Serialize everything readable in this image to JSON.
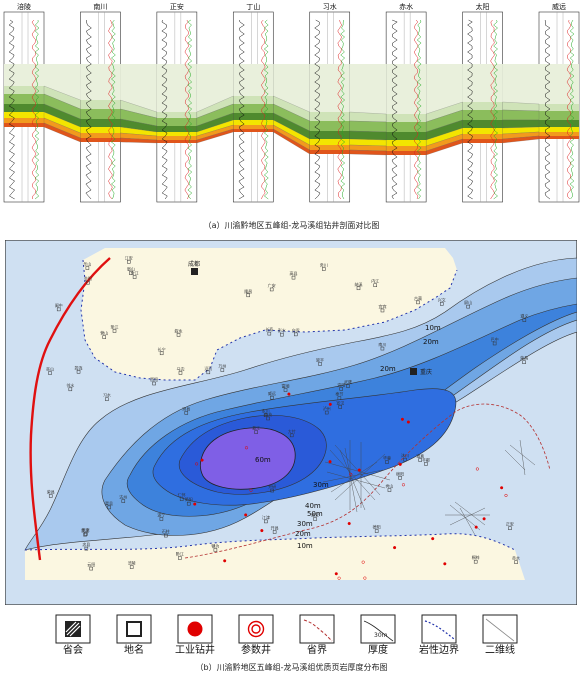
{
  "panel_a": {
    "caption": "（a）川渝黔地区五峰组-龙马溪组钻井剖面对比图",
    "wells": [
      "涪陵",
      "南川",
      "正安",
      "丁山",
      "习水",
      "赤水",
      "太阳",
      "威远"
    ]
  },
  "panel_b": {
    "caption": "（b）川渝黔地区五峰组-龙马溪组优质页岩厚度分布图",
    "contour_labels": [
      "10m",
      "20m",
      "20m",
      "30m",
      "40m",
      "50m",
      "60m",
      "30m",
      "20m",
      "10m"
    ],
    "key_cities": [
      "成都",
      "重庆"
    ],
    "places": [
      "大竹",
      "营山",
      "南充",
      "乐至",
      "资阳",
      "简阳",
      "内江",
      "自贡",
      "宜宾",
      "泸州",
      "合江",
      "赤水",
      "习水",
      "遵义",
      "綦江",
      "南川",
      "涪陵",
      "长寿",
      "梁平",
      "达州",
      "万州",
      "忠县",
      "石柱",
      "彭水",
      "武隆",
      "丰都",
      "垫江",
      "广安",
      "邻水",
      "华蓥",
      "荣昌",
      "永川",
      "江津",
      "威远",
      "叙永",
      "古蔺",
      "仁怀",
      "桐梓",
      "正安",
      "道真",
      "务川",
      "沿河",
      "酉阳",
      "秀山",
      "黔江",
      "巫山",
      "奉节",
      "云阳",
      "开县",
      "宣汉",
      "渠县",
      "巴中",
      "阆中",
      "绵阳",
      "德阳",
      "遂宁",
      "眉山",
      "乐山",
      "雅安",
      "屏山",
      "高县",
      "珙县",
      "筠连",
      "长宁",
      "兴文",
      "江安",
      "纳溪",
      "隆昌",
      "富顺",
      "荣县",
      "井研",
      "犍为",
      "沐川",
      "马边",
      "雷波",
      "金阳"
    ]
  },
  "legend": [
    {
      "icon": "provincial-capital-icon",
      "label": "省会"
    },
    {
      "icon": "place-name-icon",
      "label": "地名"
    },
    {
      "icon": "industrial-well-icon",
      "label": "工业钻井"
    },
    {
      "icon": "parameter-well-icon",
      "label": "参数井"
    },
    {
      "icon": "provincial-boundary-icon",
      "label": "省界"
    },
    {
      "icon": "thickness-contour-icon",
      "label": "厚度",
      "sample": "30m"
    },
    {
      "icon": "lithology-boundary-icon",
      "label": "岩性边界"
    },
    {
      "icon": "2d-seismic-line-icon",
      "label": "二维线"
    }
  ],
  "colors": {
    "band_purple": "#d6cde6",
    "band_lightgreen": "#cfe3b8",
    "band_green": "#8bbd5c",
    "band_darkgreen": "#4f8a2e",
    "band_yellow": "#f3e500",
    "band_orange": "#f29a1d",
    "band_red": "#e0551b",
    "map_bg": "#cfe0f2",
    "land_cream": "#fbf7e1",
    "c10": "#a9c9ee",
    "c20": "#6fa6e4",
    "c30": "#3d82dc",
    "c40": "#2f6ee0",
    "c50": "#2a5ad8",
    "c60": "#6b5ce8",
    "core": "#7f5fe6",
    "province": "#e01010",
    "lith": "#2233aa"
  }
}
